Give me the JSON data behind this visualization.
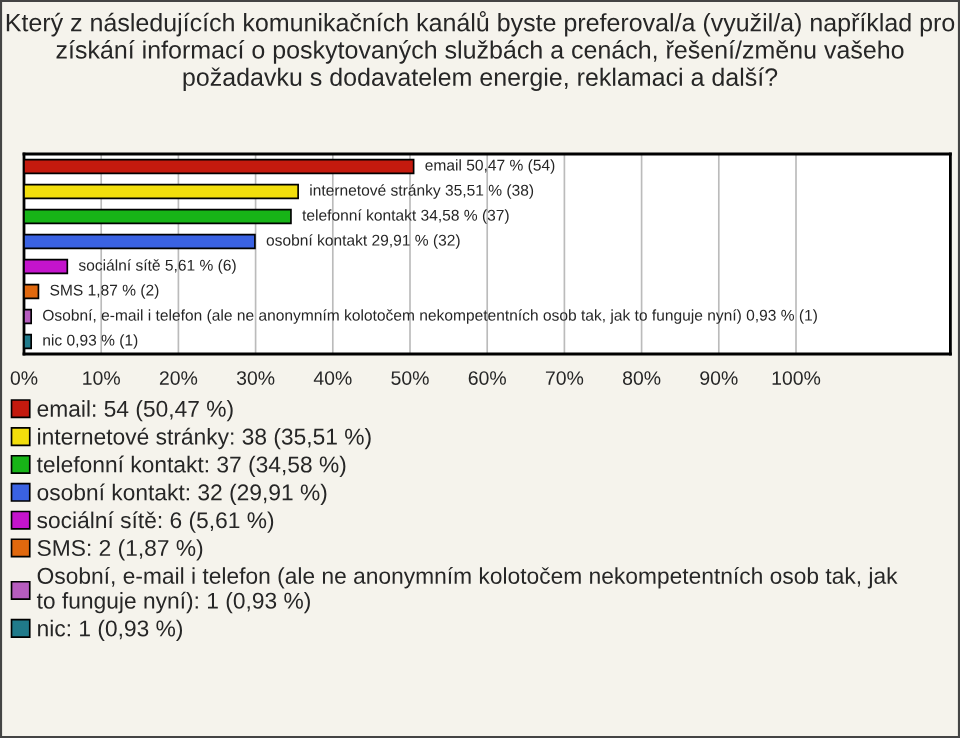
{
  "chart_data": {
    "type": "bar",
    "orientation": "horizontal",
    "title": "Který z následujících komunikačních kanálů byste preferoval/a (využil/a) například pro získání informací o poskytovaných službách a cenách, řešení/změnu vašeho požadavku s dodavatelem energie, reklamaci a další?",
    "categories": [
      null,
      null,
      null,
      null,
      null,
      null,
      null,
      null
    ],
    "series": [
      {
        "name": "email: 54 (50,47 %)",
        "color": "#c41a0e",
        "values": [
          50.47,
          null,
          null,
          null,
          null,
          null,
          null,
          null
        ],
        "value_labels": [
          "email 50,47 % (54)",
          null,
          null,
          null,
          null,
          null,
          null,
          null
        ]
      },
      {
        "name": "internetové stránky: 38 (35,51 %)",
        "color": "#f2de0c",
        "values": [
          null,
          35.51,
          null,
          null,
          null,
          null,
          null,
          null
        ],
        "value_labels": [
          null,
          "internetové stránky 35,51 % (38)",
          null,
          null,
          null,
          null,
          null,
          null
        ]
      },
      {
        "name": "telefonní kontakt: 37 (34,58 %)",
        "color": "#17b417",
        "values": [
          null,
          null,
          34.58,
          null,
          null,
          null,
          null,
          null
        ],
        "value_labels": [
          null,
          null,
          "telefonní kontakt 34,58 % (37)",
          null,
          null,
          null,
          null,
          null
        ]
      },
      {
        "name": "osobní kontakt: 32 (29,91 %)",
        "color": "#3a62e2",
        "values": [
          null,
          null,
          null,
          29.91,
          null,
          null,
          null,
          null
        ],
        "value_labels": [
          null,
          null,
          null,
          "osobní kontakt 29,91 % (32)",
          null,
          null,
          null,
          null
        ]
      },
      {
        "name": "sociální sítě: 6 (5,61 %)",
        "color": "#c414cc",
        "values": [
          null,
          null,
          null,
          null,
          5.61,
          null,
          null,
          null
        ],
        "value_labels": [
          null,
          null,
          null,
          null,
          "sociální sítě 5,61 % (6)",
          null,
          null,
          null
        ]
      },
      {
        "name": "SMS: 2 (1,87 %)",
        "color": "#e0680e",
        "values": [
          null,
          null,
          null,
          null,
          null,
          1.87,
          null,
          null
        ],
        "value_labels": [
          null,
          null,
          null,
          null,
          null,
          "SMS 1,87 % (2)",
          null,
          null
        ]
      },
      {
        "name": "Osobní, e-mail i telefon (ale ne anonymním kolotočem nekompetentních osob tak, jak to funguje nyní): 1 (0,93 %)",
        "color": "#b65cbe",
        "values": [
          null,
          null,
          null,
          null,
          null,
          null,
          0.93,
          null
        ],
        "value_labels": [
          null,
          null,
          null,
          null,
          null,
          null,
          "Osobní, e-mail i telefon (ale ne anonymním kolotočem nekompetentních osob tak, jak to funguje nyní) 0,93 % (1)",
          null
        ]
      },
      {
        "name": "nic: 1 (0,93 %)",
        "color": "#207a8a",
        "values": [
          null,
          null,
          null,
          null,
          null,
          null,
          null,
          0.93
        ],
        "value_labels": [
          null,
          null,
          null,
          null,
          null,
          null,
          null,
          "nic 0,93 % (1)"
        ]
      }
    ],
    "xlim": [
      0,
      120
    ],
    "xticks": [
      {
        "value": 0,
        "label": "0%"
      },
      {
        "value": 10,
        "label": "10%"
      },
      {
        "value": 20,
        "label": "20%"
      },
      {
        "value": 30,
        "label": "30%"
      },
      {
        "value": 40,
        "label": "40%"
      },
      {
        "value": 50,
        "label": "50%"
      },
      {
        "value": 60,
        "label": "60%"
      },
      {
        "value": 70,
        "label": "70%"
      },
      {
        "value": 80,
        "label": "80%"
      },
      {
        "value": 90,
        "label": "90%"
      },
      {
        "value": 100,
        "label": "100%"
      }
    ],
    "grid": "x",
    "legend": "bottom",
    "tick_labels": "x"
  }
}
